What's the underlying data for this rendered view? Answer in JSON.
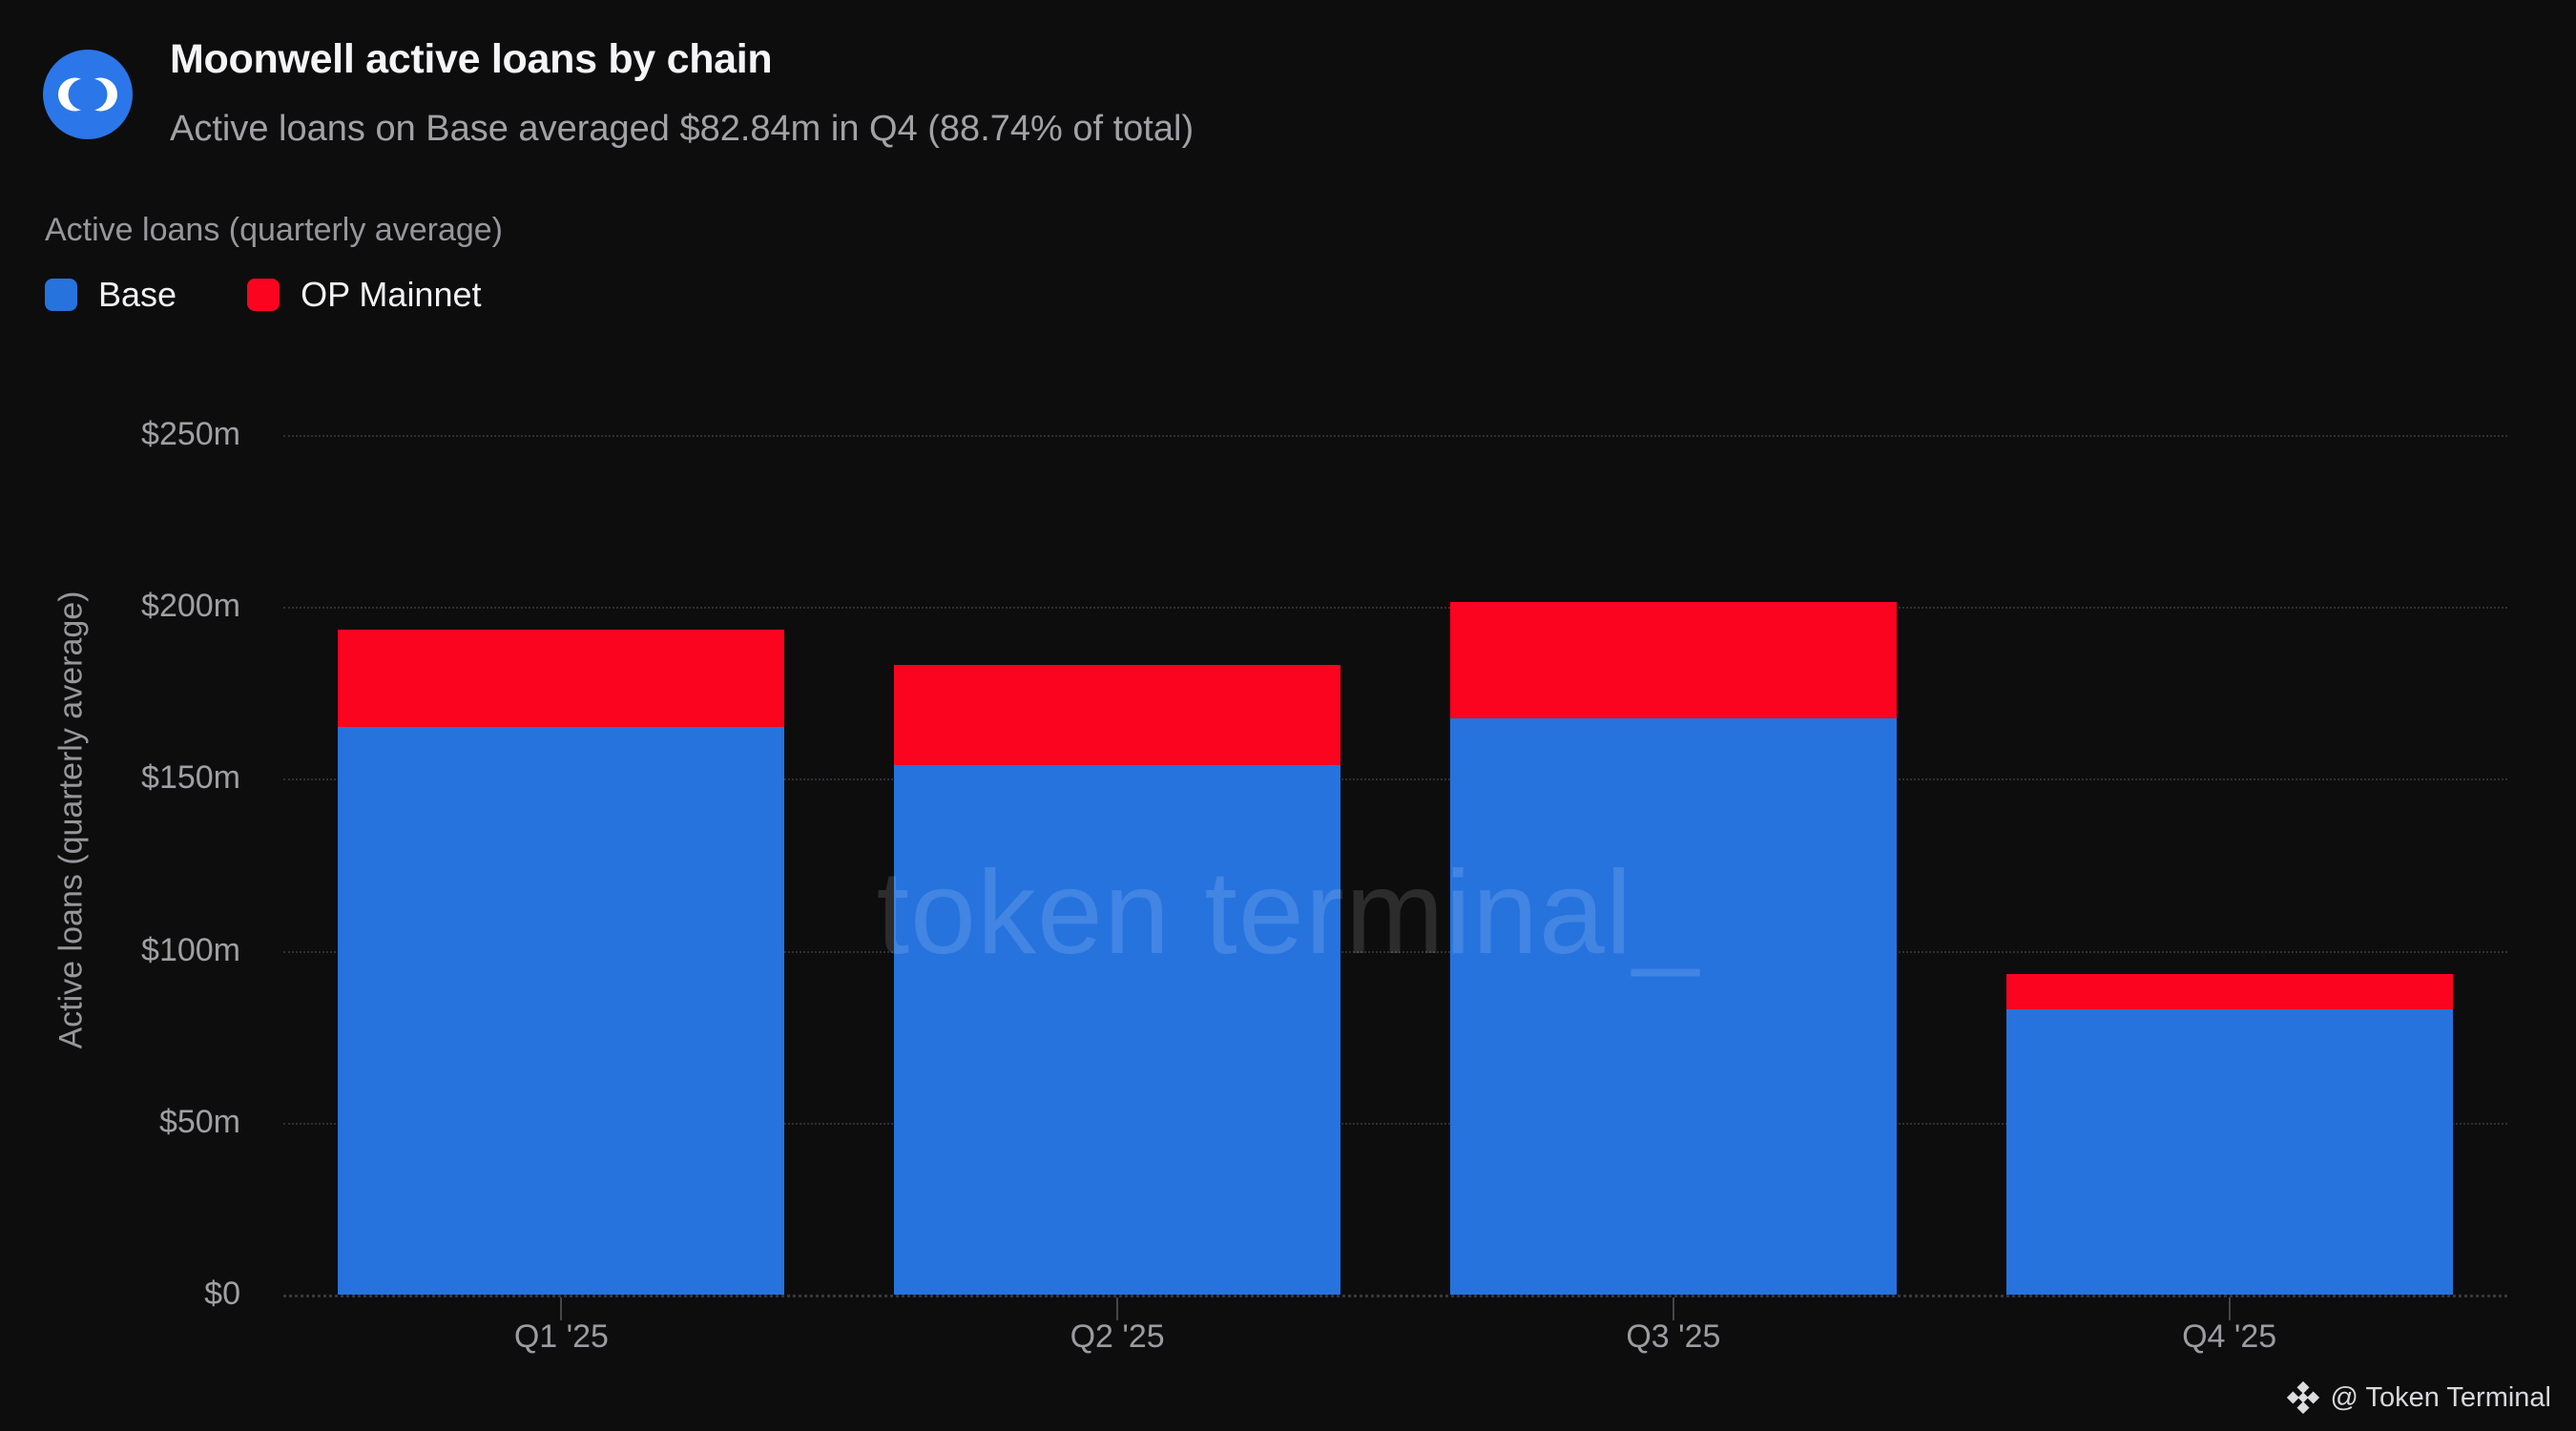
{
  "header": {
    "title": "Moonwell active loans by chain",
    "subtitle": "Active loans on Base averaged $82.84m in Q4 (88.74% of total)"
  },
  "panel_label": "Active loans (quarterly average)",
  "legend": {
    "items": [
      {
        "label": "Base",
        "color": "#2673de"
      },
      {
        "label": "OP Mainnet",
        "color": "#fb0420"
      }
    ]
  },
  "watermark": "token terminal_",
  "footer": {
    "attribution": "@ Token Terminal",
    "icon": "binance-diamond-icon"
  },
  "colors": {
    "background": "#0d0d0e",
    "base_blue": "#2673de",
    "op_red": "#fb0420",
    "logo_blue": "#2b76e8",
    "grid": "#303034",
    "text_primary": "#f5f5f7",
    "text_secondary": "#a2a2a6"
  },
  "chart_data": {
    "type": "bar",
    "stacked": true,
    "title": "Moonwell active loans by chain",
    "subtitle": "Active loans on Base averaged $82.84m in Q4 (88.74% of total)",
    "categories": [
      "Q1 '25",
      "Q2 '25",
      "Q3 '25",
      "Q4 '25"
    ],
    "series": [
      {
        "name": "Base",
        "color": "#2673de",
        "values": [
          165,
          154,
          167.5,
          82.84
        ]
      },
      {
        "name": "OP Mainnet",
        "color": "#fb0420",
        "values": [
          28.3,
          29,
          34,
          10.51
        ]
      }
    ],
    "totals": [
      193.3,
      183,
      201.5,
      93.35
    ],
    "xlabel": "",
    "ylabel": "Active loans (quarterly average)",
    "unit": "USD millions",
    "ylim": [
      0,
      250
    ],
    "yticks": [
      0,
      50,
      100,
      150,
      200,
      250
    ],
    "ytick_labels": [
      "$0",
      "$50m",
      "$100m",
      "$150m",
      "$200m",
      "$250m"
    ],
    "grid": "horizontal-dotted",
    "legend_position": "top-left"
  }
}
